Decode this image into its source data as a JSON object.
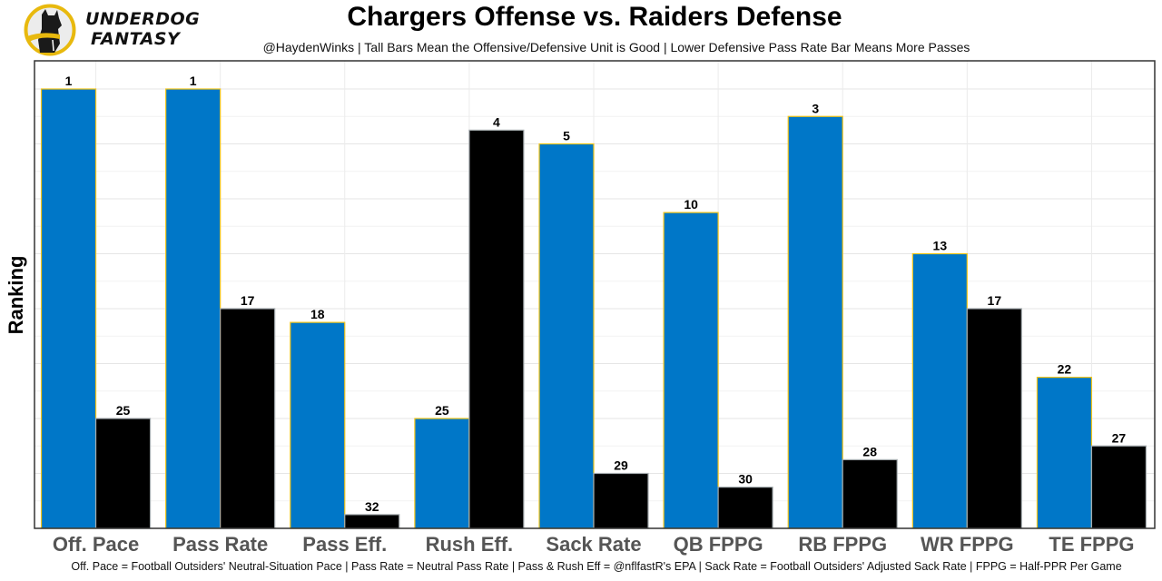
{
  "branding": {
    "logo_icon": "underdog-dog-logo-icon",
    "name_line1": "UNDERDOG",
    "name_line2": "FANTASY",
    "colors": {
      "ring": "#e8b90e",
      "dog": "#1a1a1a",
      "bg": "#e9e9e9"
    }
  },
  "chart_data": {
    "type": "bar",
    "title": "Chargers Offense vs. Raiders Defense",
    "subtitle": "@HaydenWinks | Tall Bars Mean the Offensive/Defensive Unit is Good | Lower Defensive Pass Rate Bar Means More Passes",
    "caption": "Off. Pace = Football Outsiders' Neutral-Situation Pace | Pass Rate = Neutral Pass Rate | Pass & Rush Eff = @nflfastR's EPA | Sack Rate = Football Outsiders' Adjusted Sack Rate | FPPG = Half-PPR Per Game",
    "xlabel": "",
    "ylabel": "Ranking",
    "value_note": "Values are rankings (1 = best); bar height encodes 33 - rank",
    "rank_range": [
      1,
      32
    ],
    "categories": [
      "Off. Pace",
      "Pass Rate",
      "Pass Eff.",
      "Rush Eff.",
      "Sack Rate",
      "QB FPPG",
      "RB FPPG",
      "WR FPPG",
      "TE FPPG"
    ],
    "series": [
      {
        "name": "Chargers Offense",
        "color": "#0077c8",
        "border": "#f5c518",
        "values": [
          1,
          1,
          18,
          25,
          5,
          10,
          3,
          13,
          22
        ]
      },
      {
        "name": "Raiders Defense",
        "color": "#000000",
        "border": "#a5acaf",
        "values": [
          25,
          17,
          32,
          4,
          29,
          30,
          28,
          17,
          27
        ]
      }
    ],
    "grid": true,
    "legend": "none",
    "axis_text_color": "#555555"
  }
}
